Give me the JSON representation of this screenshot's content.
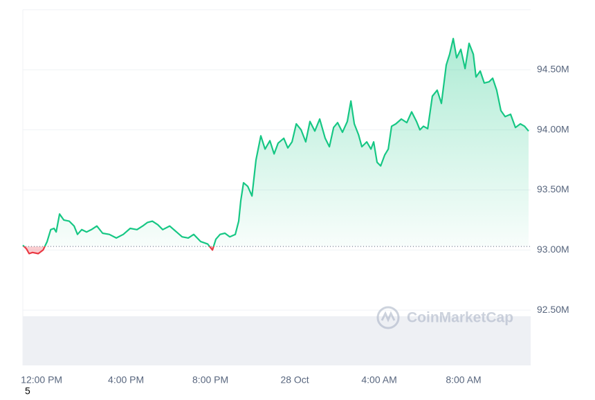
{
  "chart_data": {
    "type": "line",
    "x": [
      -0.89,
      -0.72,
      -0.59,
      -0.43,
      -0.16,
      0.07,
      0.26,
      0.43,
      0.59,
      0.69,
      0.85,
      1.05,
      1.31,
      1.54,
      1.7,
      1.9,
      2.13,
      2.36,
      2.62,
      2.89,
      3.21,
      3.54,
      3.87,
      4.2,
      4.52,
      4.79,
      5.02,
      5.25,
      5.51,
      5.74,
      6.07,
      6.33,
      6.66,
      6.95,
      7.21,
      7.54,
      7.87,
      8.1,
      8.26,
      8.46,
      8.69,
      8.92,
      9.18,
      9.34,
      9.44,
      9.57,
      9.77,
      9.97,
      10.16,
      10.39,
      10.59,
      10.82,
      11.02,
      11.21,
      11.48,
      11.67,
      11.87,
      12.07,
      12.3,
      12.52,
      12.72,
      12.95,
      13.18,
      13.44,
      13.64,
      13.84,
      14.03,
      14.26,
      14.49,
      14.66,
      14.82,
      15.02,
      15.18,
      15.41,
      15.61,
      15.74,
      15.9,
      16.07,
      16.26,
      16.43,
      16.59,
      16.79,
      17.05,
      17.31,
      17.54,
      17.77,
      17.93,
      18.1,
      18.3,
      18.52,
      18.75,
      18.95,
      19.18,
      19.34,
      19.51,
      19.67,
      19.87,
      20.07,
      20.26,
      20.46,
      20.59,
      20.79,
      20.98,
      21.21,
      21.38,
      21.57,
      21.77,
      21.97,
      22.23,
      22.46,
      22.69,
      22.89,
      23.08
    ],
    "values": [
      93.04,
      93.01,
      92.97,
      92.98,
      92.97,
      93.0,
      93.07,
      93.17,
      93.18,
      93.15,
      93.3,
      93.25,
      93.24,
      93.2,
      93.13,
      93.17,
      93.15,
      93.17,
      93.2,
      93.14,
      93.13,
      93.1,
      93.13,
      93.18,
      93.17,
      93.2,
      93.23,
      93.24,
      93.21,
      93.17,
      93.2,
      93.16,
      93.11,
      93.1,
      93.13,
      93.07,
      93.05,
      93.0,
      93.09,
      93.13,
      93.14,
      93.11,
      93.13,
      93.24,
      93.41,
      93.56,
      93.53,
      93.45,
      93.75,
      93.95,
      93.84,
      93.91,
      93.8,
      93.89,
      93.93,
      93.85,
      93.9,
      94.05,
      94.0,
      93.9,
      94.07,
      93.99,
      94.09,
      93.93,
      93.86,
      94.02,
      94.06,
      93.98,
      94.07,
      94.24,
      94.05,
      93.96,
      93.86,
      93.9,
      93.84,
      93.9,
      93.73,
      93.7,
      93.79,
      93.84,
      94.03,
      94.05,
      94.09,
      94.06,
      94.15,
      94.07,
      94.0,
      94.03,
      94.01,
      94.28,
      94.33,
      94.22,
      94.54,
      94.63,
      94.76,
      94.6,
      94.67,
      94.51,
      94.72,
      94.63,
      94.44,
      94.49,
      94.39,
      94.4,
      94.43,
      94.33,
      94.16,
      94.11,
      94.13,
      94.02,
      94.05,
      94.03,
      93.99
    ],
    "baseline": 93.03,
    "color": "#16c784",
    "down_color": "#ea3943",
    "xlim": [
      -0.89,
      23.18
    ],
    "xticks": [
      {
        "value": 0,
        "label": "12:00 PM"
      },
      {
        "value": 4,
        "label": "4:00 PM"
      },
      {
        "value": 8,
        "label": "8:00 PM"
      },
      {
        "value": 12,
        "label": "28 Oct"
      },
      {
        "value": 16,
        "label": "4:00 AM"
      },
      {
        "value": 20,
        "label": "8:00 AM"
      }
    ],
    "ylim": [
      92.04,
      95.0
    ],
    "yticks": [
      {
        "value": 92.5,
        "label": "92.50M"
      },
      {
        "value": 93.0,
        "label": "93.00M"
      },
      {
        "value": 93.5,
        "label": "93.50M"
      },
      {
        "value": 94.0,
        "label": "94.00M"
      },
      {
        "value": 94.5,
        "label": "94.50M"
      }
    ],
    "grid": true,
    "watermark": "CoinMarketCap",
    "footnote": "5"
  }
}
